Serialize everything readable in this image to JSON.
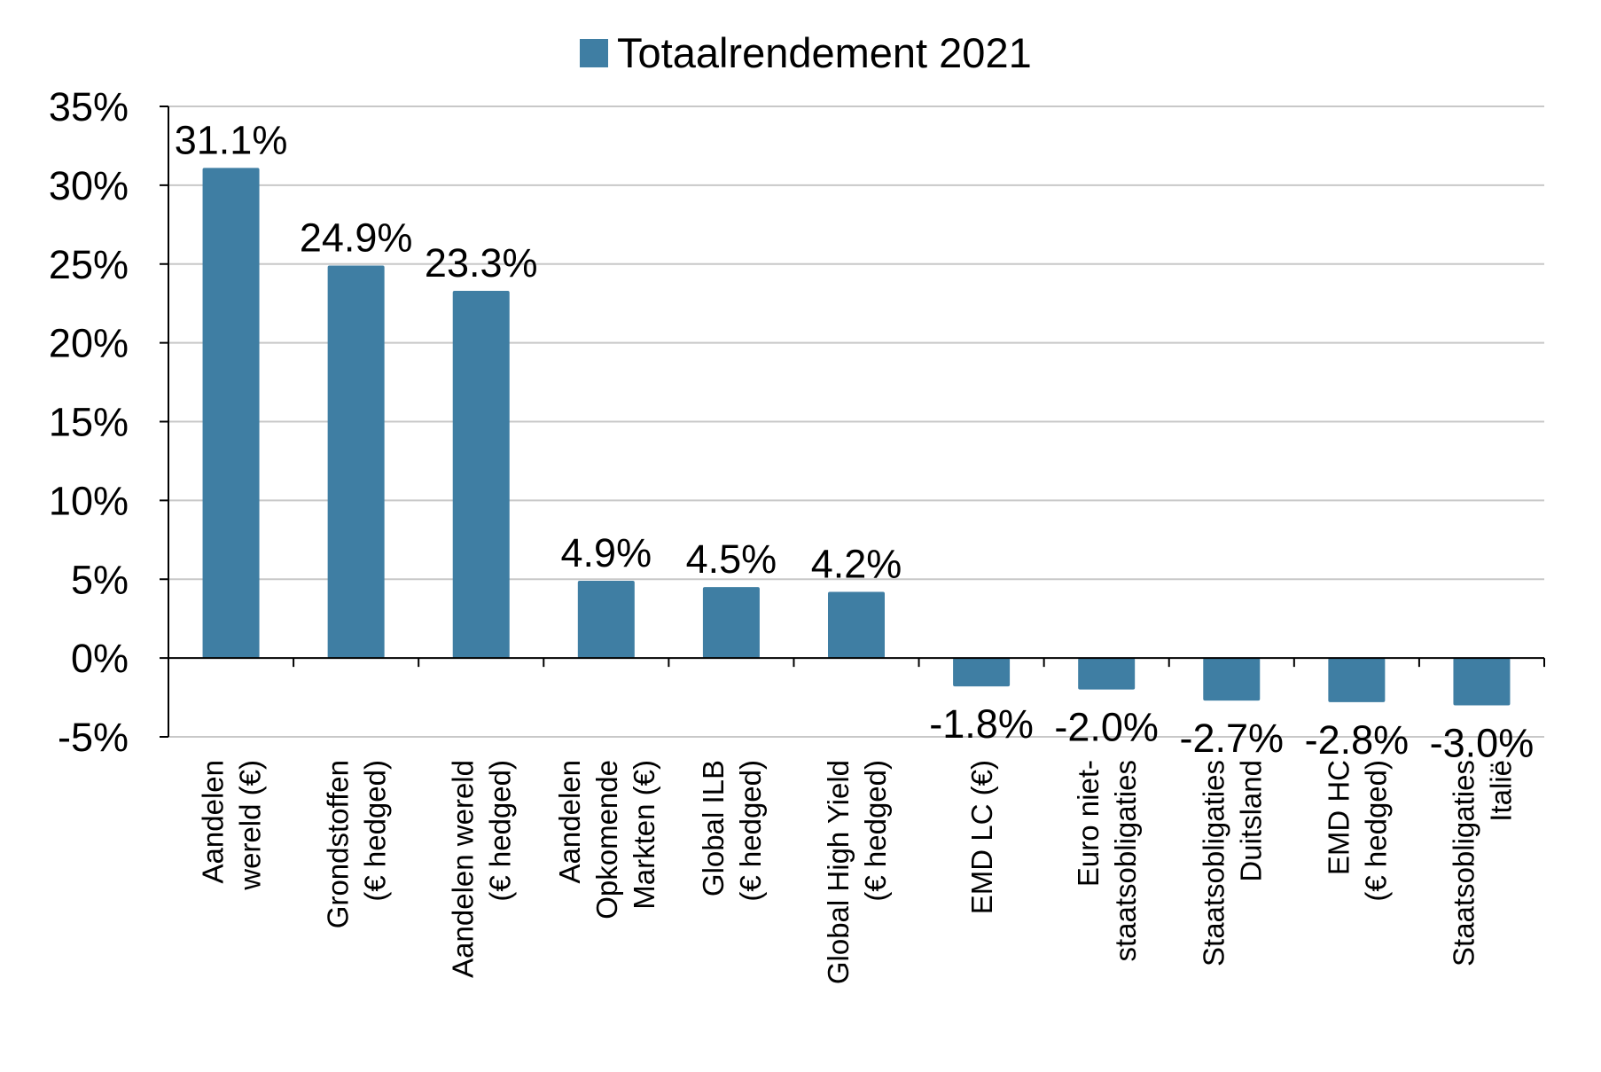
{
  "chart_data": {
    "type": "bar",
    "legend": {
      "position": "top",
      "color": "#3f7ea3"
    },
    "series": [
      {
        "name": "Totaalrendement 2021",
        "color": "#3f7ea3",
        "values": [
          31.1,
          24.9,
          23.3,
          4.9,
          4.5,
          4.2,
          -1.8,
          -2.0,
          -2.7,
          -2.8,
          -3.0
        ],
        "labels": [
          "31.1%",
          "24.9%",
          "23.3%",
          "4.9%",
          "4.5%",
          "4.2%",
          "-1.8%",
          "-2.0%",
          "-2.7%",
          "-2.8%",
          "-3.0%"
        ]
      }
    ],
    "categories": [
      [
        "Aandelen",
        "wereld (€)"
      ],
      [
        "Grondstoffen",
        "(€ hedged)"
      ],
      [
        "Aandelen wereld",
        "(€ hedged)"
      ],
      [
        "Aandelen",
        "Opkomende",
        "Markten (€)"
      ],
      [
        "Global ILB",
        "(€ hedged)"
      ],
      [
        "Global High Yield",
        "(€ hedged)"
      ],
      [
        "EMD LC (€)"
      ],
      [
        "Euro niet-",
        "staatsobligaties"
      ],
      [
        "Staatsobligaties",
        "Duitsland"
      ],
      [
        "EMD HC",
        "(€ hedged)"
      ],
      [
        "Staatsobligaties",
        "Italië"
      ]
    ],
    "ylim": [
      -5,
      35
    ],
    "yticks": [
      "35%",
      "30%",
      "25%",
      "20%",
      "15%",
      "10%",
      "5%",
      "0%",
      "-5%"
    ],
    "ytick_values": [
      35,
      30,
      25,
      20,
      15,
      10,
      5,
      0,
      -5
    ],
    "grid": true,
    "title": "",
    "xlabel": "",
    "ylabel": ""
  }
}
